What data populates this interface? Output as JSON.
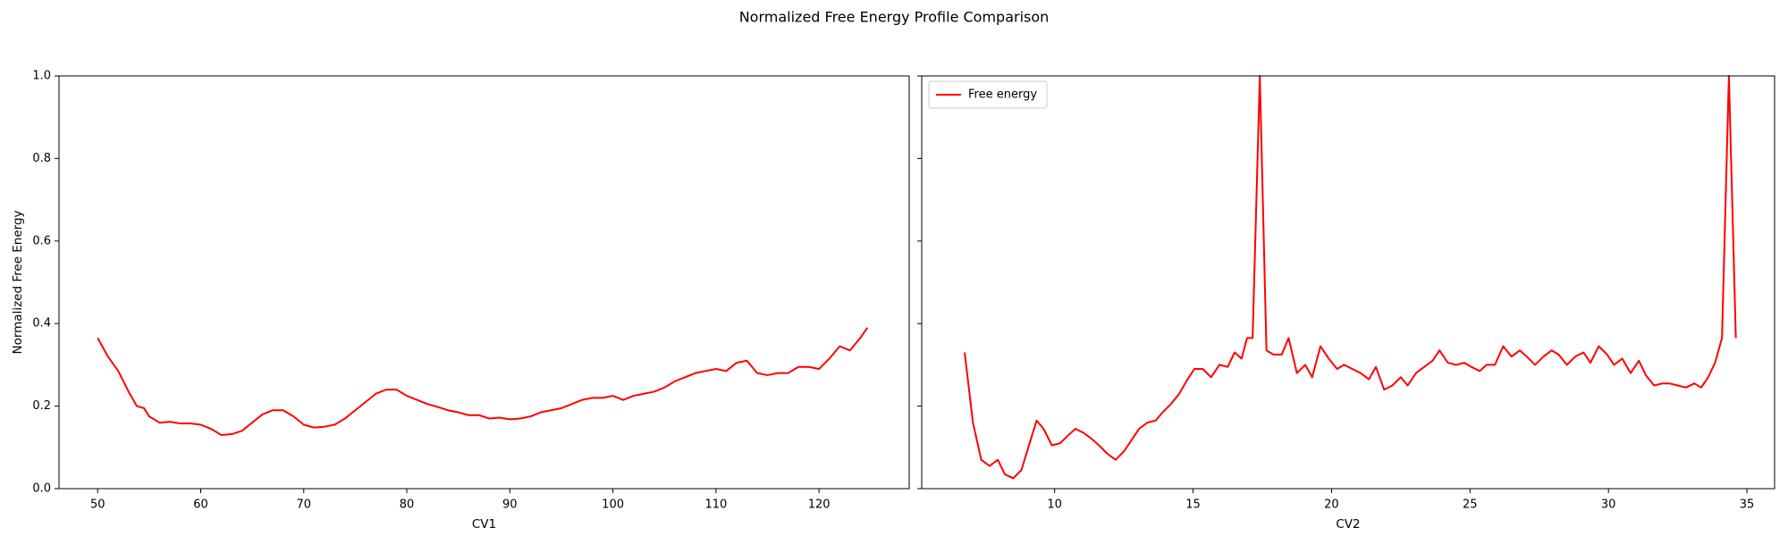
{
  "title": "Normalized Free Energy Profile Comparison",
  "chart_data": [
    {
      "type": "line",
      "xlabel": "CV1",
      "ylabel": "Normalized Free Energy",
      "color": "#ff0000",
      "xlim": [
        46.25,
        128.75
      ],
      "ylim": [
        0,
        1
      ],
      "xticks": [
        50,
        60,
        70,
        80,
        90,
        100,
        110,
        120
      ],
      "yticks": [
        {
          "value": 0,
          "label": "0.0"
        },
        {
          "value": 0.2,
          "label": "0.2"
        },
        {
          "value": 0.4,
          "label": "0.4"
        },
        {
          "value": 0.6,
          "label": "0.6"
        },
        {
          "value": 0.8,
          "label": "0.8"
        },
        {
          "value": 1,
          "label": "1.0"
        }
      ],
      "x": [
        50,
        51,
        52,
        53,
        53.8,
        54.5,
        55,
        56,
        57,
        58,
        59,
        60,
        61,
        62,
        63,
        64,
        65,
        66,
        67,
        68,
        69,
        70,
        71,
        72,
        73,
        74,
        75,
        76,
        77,
        78,
        79,
        80,
        81,
        82,
        83,
        84,
        85,
        86,
        87,
        88,
        89,
        90,
        91,
        92,
        93,
        94,
        95,
        96,
        97,
        98,
        99,
        100,
        101,
        102,
        103,
        104,
        105,
        106,
        107,
        108,
        109,
        110,
        111,
        112,
        113,
        114,
        115,
        116,
        117,
        118,
        119,
        120,
        121,
        122,
        123,
        124,
        124.7
      ],
      "values": [
        0.365,
        0.32,
        0.285,
        0.235,
        0.2,
        0.195,
        0.175,
        0.16,
        0.162,
        0.158,
        0.158,
        0.155,
        0.145,
        0.13,
        0.132,
        0.14,
        0.16,
        0.18,
        0.19,
        0.19,
        0.175,
        0.155,
        0.148,
        0.15,
        0.155,
        0.17,
        0.19,
        0.21,
        0.23,
        0.24,
        0.24,
        0.225,
        0.215,
        0.205,
        0.198,
        0.19,
        0.185,
        0.178,
        0.178,
        0.17,
        0.172,
        0.168,
        0.17,
        0.175,
        0.185,
        0.19,
        0.195,
        0.205,
        0.215,
        0.22,
        0.22,
        0.225,
        0.215,
        0.225,
        0.23,
        0.235,
        0.245,
        0.26,
        0.27,
        0.28,
        0.285,
        0.29,
        0.285,
        0.305,
        0.31,
        0.28,
        0.275,
        0.28,
        0.28,
        0.295,
        0.295,
        0.29,
        0.315,
        0.345,
        0.335,
        0.365,
        0.39
      ]
    },
    {
      "type": "line",
      "xlabel": "CV2",
      "legend": "upper left",
      "xlim": [
        5.2,
        36.0
      ],
      "ylim": [
        0,
        1
      ],
      "xticks": [
        10,
        15,
        20,
        25,
        30,
        35
      ],
      "yticks": [
        0,
        0.2,
        0.4,
        0.6,
        0.8,
        1
      ],
      "series": [
        {
          "name": "Free energy",
          "color": "#ff0000",
          "x": [
            6.75,
            7.05,
            7.35,
            7.65,
            7.95,
            8.2,
            8.5,
            8.8,
            9.05,
            9.35,
            9.6,
            9.9,
            10.2,
            10.5,
            10.75,
            11.05,
            11.35,
            11.6,
            11.9,
            12.2,
            12.5,
            12.8,
            13.05,
            13.35,
            13.65,
            13.9,
            14.2,
            14.5,
            14.8,
            15.05,
            15.35,
            15.65,
            15.95,
            16.25,
            16.5,
            16.75,
            16.95,
            17.15,
            17.41,
            17.65,
            17.9,
            18.2,
            18.45,
            18.75,
            19.05,
            19.3,
            19.6,
            19.9,
            20.2,
            20.45,
            20.75,
            21.05,
            21.35,
            21.6,
            21.9,
            22.2,
            22.5,
            22.75,
            23.05,
            23.35,
            23.65,
            23.9,
            24.2,
            24.5,
            24.8,
            25.05,
            25.35,
            25.6,
            25.9,
            26.2,
            26.5,
            26.8,
            27.05,
            27.35,
            27.65,
            27.95,
            28.2,
            28.5,
            28.8,
            29.1,
            29.35,
            29.65,
            29.95,
            30.2,
            30.5,
            30.8,
            31.1,
            31.35,
            31.65,
            31.95,
            32.2,
            32.5,
            32.8,
            33.1,
            33.35,
            33.6,
            33.85,
            34.1,
            34.35,
            34.6
          ],
          "values": [
            0.33,
            0.16,
            0.07,
            0.055,
            0.07,
            0.035,
            0.025,
            0.045,
            0.1,
            0.165,
            0.145,
            0.105,
            0.11,
            0.13,
            0.145,
            0.135,
            0.12,
            0.105,
            0.085,
            0.07,
            0.09,
            0.12,
            0.145,
            0.16,
            0.165,
            0.185,
            0.205,
            0.23,
            0.265,
            0.29,
            0.29,
            0.27,
            0.3,
            0.295,
            0.33,
            0.315,
            0.365,
            0.365,
            1.0,
            0.335,
            0.325,
            0.325,
            0.365,
            0.28,
            0.3,
            0.27,
            0.345,
            0.315,
            0.29,
            0.3,
            0.29,
            0.28,
            0.265,
            0.295,
            0.24,
            0.25,
            0.27,
            0.25,
            0.28,
            0.295,
            0.31,
            0.335,
            0.305,
            0.3,
            0.305,
            0.295,
            0.285,
            0.3,
            0.3,
            0.345,
            0.32,
            0.335,
            0.32,
            0.3,
            0.32,
            0.335,
            0.325,
            0.3,
            0.32,
            0.33,
            0.305,
            0.345,
            0.325,
            0.3,
            0.315,
            0.28,
            0.31,
            0.275,
            0.25,
            0.255,
            0.255,
            0.25,
            0.245,
            0.255,
            0.245,
            0.27,
            0.305,
            0.365,
            1.0,
            0.365
          ]
        }
      ]
    }
  ]
}
